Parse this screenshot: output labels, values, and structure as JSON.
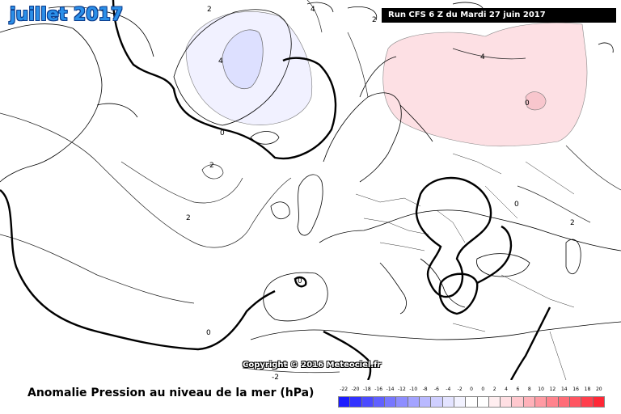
{
  "header": {
    "month_title": "juillet 2017",
    "run_banner": "Run CFS 6 Z du Mardi 27 juin 2017"
  },
  "footer": {
    "copyright": "Copyright © 2016 Meteociel.fr",
    "title": "Anomalie Pression au niveau de la mer (hPa)"
  },
  "legend": {
    "ticks": [
      "-22",
      "-20",
      "-18",
      "-16",
      "-14",
      "-12",
      "-10",
      "-8",
      "-6",
      "-4",
      "-2",
      "0",
      "0",
      "2",
      "4",
      "6",
      "8",
      "10",
      "12",
      "14",
      "16",
      "18",
      "20"
    ],
    "colors": [
      "#1c1cff",
      "#3232ff",
      "#4a4aff",
      "#6060ff",
      "#7777ff",
      "#8d8dff",
      "#a3a3ff",
      "#b9b9ff",
      "#cfcfff",
      "#e3e3ff",
      "#f2f2ff",
      "#ffffff",
      "#ffffff",
      "#ffeef0",
      "#ffdfe3",
      "#ffc8ce",
      "#ffb1b9",
      "#ff9aa3",
      "#ff838d",
      "#ff6c77",
      "#ff5561",
      "#ff3e4c",
      "#ff2736"
    ]
  },
  "contour_labels": {
    "greenland_2": "2",
    "greenland_4": "4",
    "greenland_0": "0",
    "atlantic_2a": "2",
    "atlantic_2b": "2",
    "atlantic_0": "0",
    "iberia_0": "0",
    "russia_4": "4",
    "russia_0": "0",
    "east_0": "0",
    "east_2": "2",
    "south_2": "-2",
    "norway_4": "4",
    "norway_2": "2"
  },
  "colors": {
    "negative_fill": "#dde0ff",
    "positive_fill": "#fde0e4",
    "title_blue": "#2b8fe8"
  }
}
